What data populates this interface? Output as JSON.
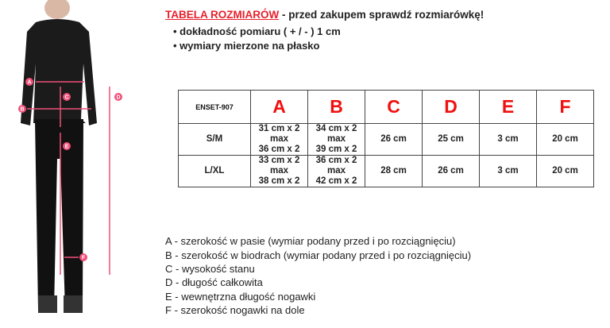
{
  "heading": {
    "title": "TABELA ROZMIARÓW",
    "rest": " - przed zakupem sprawdź rozmiarówkę!"
  },
  "bullets": [
    "dokładność pomiaru ( + / - ) 1 cm",
    "wymiary mierzone na płasko"
  ],
  "table": {
    "code": "ENSET-907",
    "columns": [
      "A",
      "B",
      "C",
      "D",
      "E",
      "F"
    ],
    "rows": [
      {
        "size": "S/M",
        "a": [
          "31 cm x 2",
          "max",
          "36 cm x 2"
        ],
        "b": [
          "34 cm x 2",
          "max",
          "39 cm x 2"
        ],
        "c": "26 cm",
        "d": "25 cm",
        "e": "3 cm",
        "f": "20 cm"
      },
      {
        "size": "L/XL",
        "a": [
          "33 cm x 2",
          "max",
          "38 cm x 2"
        ],
        "b": [
          "36 cm x 2",
          "max",
          "42 cm x 2"
        ],
        "c": "28 cm",
        "d": "26 cm",
        "e": "3 cm",
        "f": "20 cm"
      }
    ]
  },
  "legend": [
    {
      "k": "A",
      "t": " - szerokość w pasie (wymiar podany przed i po rozciągnięciu)"
    },
    {
      "k": "B",
      "t": " - szerokość w biodrach (wymiar podany przed i po rozciągnięciu)"
    },
    {
      "k": "C",
      "t": " - wysokość stanu"
    },
    {
      "k": "D",
      "t": " - długość całkowita"
    },
    {
      "k": "E",
      "t": " - wewnętrzna długość nogawki"
    },
    {
      "k": "F",
      "t": " - szerokość nogawki na dole"
    }
  ],
  "figure_labels": [
    "A",
    "B",
    "C",
    "D",
    "E",
    "F"
  ],
  "colors": {
    "accent": "#e8202a",
    "size": "#1414e8",
    "marker": "#f0507a"
  }
}
